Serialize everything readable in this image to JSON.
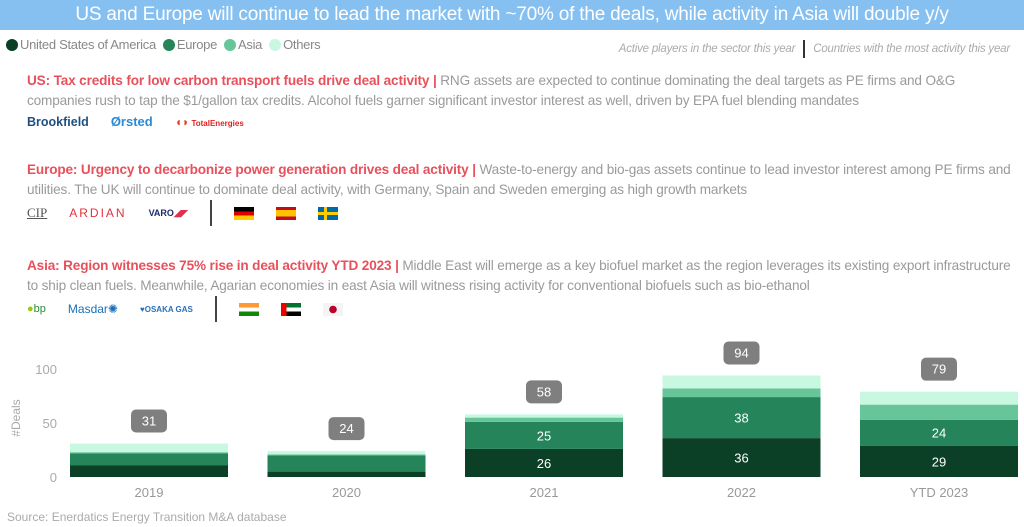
{
  "header": {
    "title": "US and Europe will continue to lead the market with ~70% of the deals, while activity in Asia will double y/y"
  },
  "legend": [
    {
      "label": "United States of America",
      "color": "#0b3f26"
    },
    {
      "label": "Europe",
      "color": "#25845a"
    },
    {
      "label": "Asia",
      "color": "#66c69a"
    },
    {
      "label": "Others",
      "color": "#c8f8e2"
    }
  ],
  "notes": {
    "players": "Active players in the sector this year",
    "countries": "Countries with the most activity this year"
  },
  "sections": [
    {
      "title": "US: Tax credits for low carbon transport fuels drive deal activity",
      "divider": "|",
      "text": "RNG assets are expected to continue dominating the deal targets as PE firms and O&G companies rush to tap the $1/gallon tax credits. Alcohol fuels garner significant investor interest as well, driven by EPA fuel blending mandates",
      "logos": [
        "Brookfield",
        "Ørsted",
        "TotalEnergies"
      ],
      "flags": []
    },
    {
      "title": "Europe: Urgency to decarbonize power generation drives deal activity",
      "divider": "|",
      "text": "Waste-to-energy and bio-gas assets continue to lead investor interest among PE firms and utilities. The UK will continue to dominate deal activity, with Germany, Spain and Sweden emerging as high growth markets",
      "logos": [
        "CIP",
        "ARDIAN",
        "VARO"
      ],
      "flags": [
        "germany",
        "spain",
        "sweden"
      ]
    },
    {
      "title": "Asia: Region witnesses 75% rise in deal activity YTD 2023",
      "divider": "|",
      "text": "Middle East will emerge as a key biofuel market as the region leverages its existing export infrastructure to ship clean fuels. Meanwhile, Agarian economies in east Asia will witness rising activity for conventional biofuels such as bio-ethanol",
      "logos": [
        "bp",
        "Masdar",
        "OSAKA GAS"
      ],
      "flags": [
        "india",
        "uae",
        "japan"
      ]
    }
  ],
  "chart_data": {
    "type": "bar",
    "stacked": true,
    "categories": [
      "2019",
      "2020",
      "2021",
      "2022",
      "YTD 2023"
    ],
    "series": [
      {
        "name": "United States of America",
        "color": "#0b3f26",
        "values": [
          11,
          5,
          26,
          36,
          29
        ]
      },
      {
        "name": "Europe",
        "color": "#25845a",
        "values": [
          11,
          15,
          25,
          38,
          24
        ]
      },
      {
        "name": "Asia",
        "color": "#66c69a",
        "values": [
          1,
          1,
          4,
          8,
          14
        ]
      },
      {
        "name": "Others",
        "color": "#c8f8e2",
        "values": [
          8,
          3,
          3,
          12,
          12
        ]
      }
    ],
    "totals": [
      31,
      24,
      58,
      94,
      79
    ],
    "segment_labels": {
      "2021": [
        26,
        25
      ],
      "2022": [
        36,
        38
      ],
      "YTD 2023": [
        29,
        24
      ]
    },
    "ylabel": "#Deals",
    "yticks": [
      0,
      50,
      100
    ],
    "ylim": [
      0,
      100
    ],
    "grid": false,
    "legend": "top-left"
  },
  "source": "Source: Enerdatics Energy Transition M&A database"
}
